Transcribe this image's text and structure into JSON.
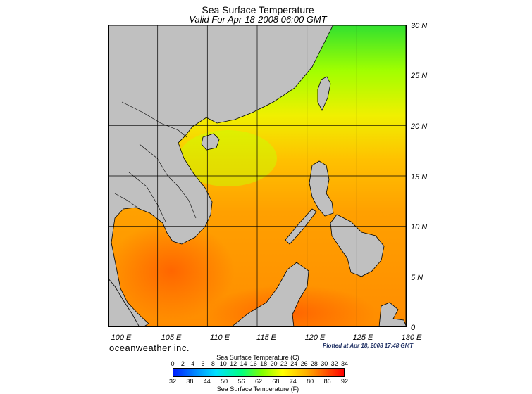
{
  "title": "Sea Surface Temperature",
  "subtitle": "Valid For Apr-18-2008 06:00 GMT",
  "lat_labels": [
    "30 N",
    "25 N",
    "20 N",
    "15 N",
    "10 N",
    "5 N",
    "0"
  ],
  "lon_labels": [
    "100 E",
    "105 E",
    "110 E",
    "115 E",
    "120 E",
    "125 E",
    "130 E"
  ],
  "brand": "oceanweather inc.",
  "plotted": "Plotted at Apr 18, 2008 17:48 GMT",
  "colorbar": {
    "celsius_title": "Sea Surface Temperature (C)",
    "fahrenheit_title": "Sea Surface Temperature (F)",
    "celsius_ticks": [
      "0",
      "2",
      "4",
      "6",
      "8",
      "10",
      "12",
      "14",
      "16",
      "18",
      "20",
      "22",
      "24",
      "26",
      "28",
      "30",
      "32",
      "34"
    ],
    "fahrenheit_ticks": [
      "32",
      "38",
      "44",
      "50",
      "56",
      "62",
      "68",
      "74",
      "80",
      "86",
      "92"
    ]
  },
  "colors": {
    "land": "#c0c0c0",
    "warm": "#ff8000",
    "mid": "#ffb000",
    "cool": "#c0ff00",
    "green": "#40ff40",
    "grid": "#000000"
  }
}
